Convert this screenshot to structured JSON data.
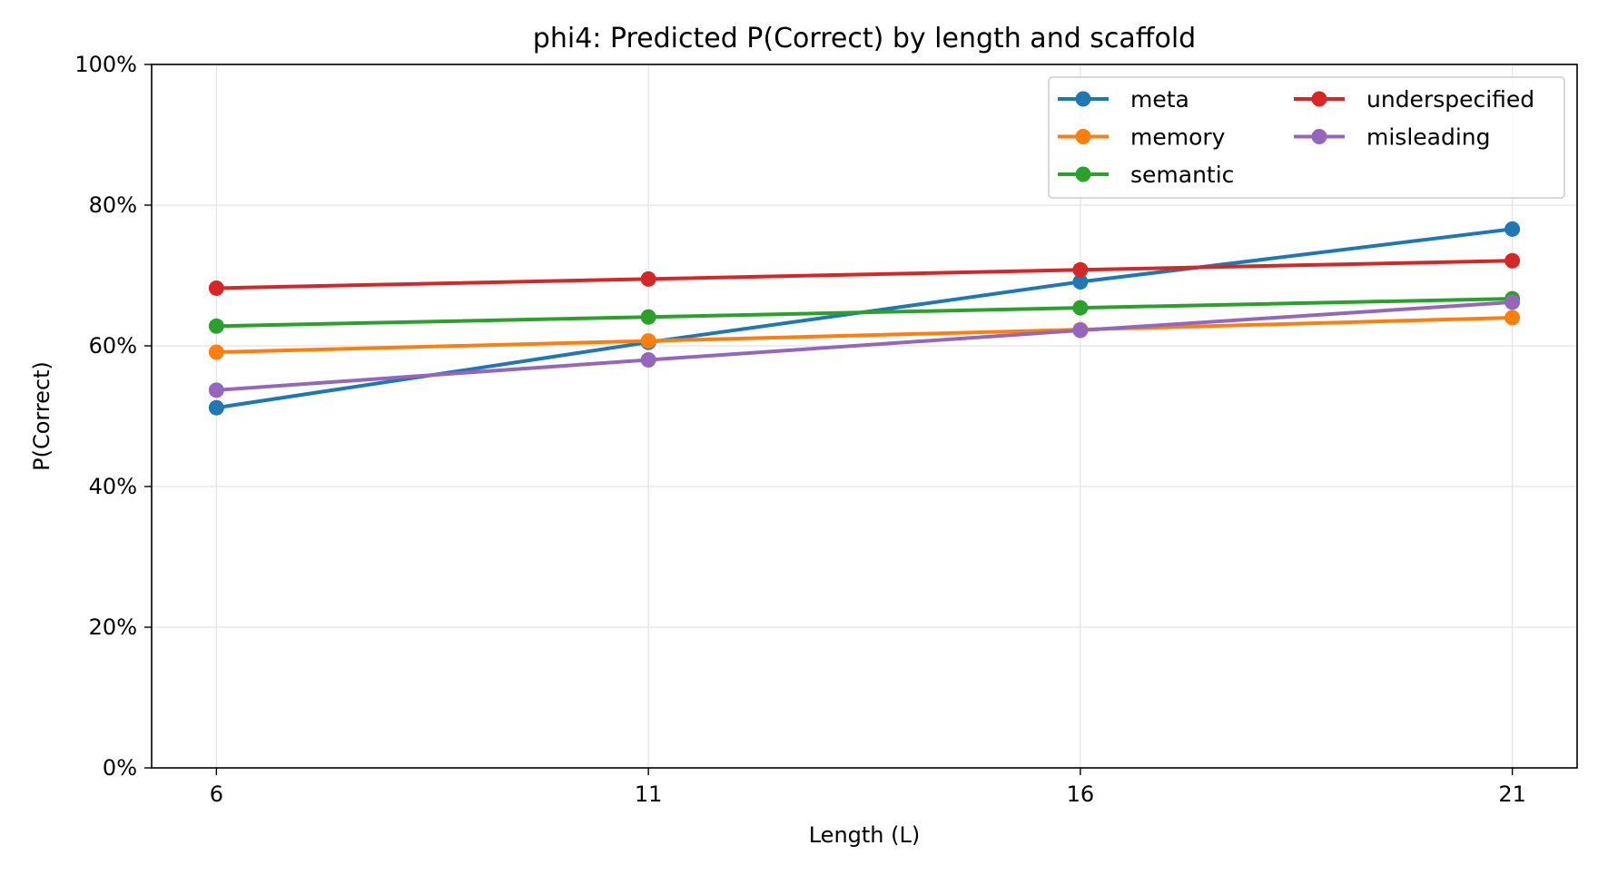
{
  "chart_data": {
    "type": "line",
    "title": "phi4: Predicted P(Correct) by length and scaffold",
    "xlabel": "Length (L)",
    "ylabel": "P(Correct)",
    "x": [
      6,
      11,
      16,
      21
    ],
    "x_tick_labels": [
      "6",
      "11",
      "16",
      "21"
    ],
    "xlim": [
      5.25,
      21.75
    ],
    "ylim": [
      0,
      1
    ],
    "y_ticks": [
      0,
      0.2,
      0.4,
      0.6,
      0.8,
      1.0
    ],
    "y_tick_labels": [
      "0%",
      "20%",
      "40%",
      "60%",
      "80%",
      "100%"
    ],
    "grid": true,
    "legend_position": "top-right",
    "legend_columns": 2,
    "series": [
      {
        "name": "meta",
        "color": "#1f77b4",
        "values": [
          0.512,
          0.605,
          0.691,
          0.766
        ]
      },
      {
        "name": "memory",
        "color": "#ff7f0e",
        "values": [
          0.591,
          0.607,
          0.623,
          0.64
        ]
      },
      {
        "name": "semantic",
        "color": "#2ca02c",
        "values": [
          0.628,
          0.641,
          0.654,
          0.667
        ]
      },
      {
        "name": "underspecified",
        "color": "#d62728",
        "values": [
          0.682,
          0.695,
          0.708,
          0.721
        ]
      },
      {
        "name": "misleading",
        "color": "#9467bd",
        "values": [
          0.537,
          0.58,
          0.622,
          0.662
        ]
      }
    ]
  }
}
